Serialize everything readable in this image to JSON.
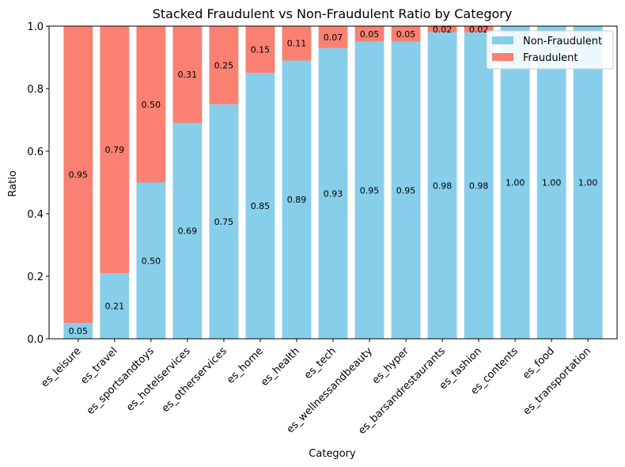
{
  "chart_data": {
    "type": "bar",
    "stacked": true,
    "title": "Stacked Fraudulent vs Non-Fraudulent Ratio by Category",
    "xlabel": "Category",
    "ylabel": "Ratio",
    "ylim": [
      0,
      1
    ],
    "yticks": [
      "0.0",
      "0.2",
      "0.4",
      "0.6",
      "0.8",
      "1.0"
    ],
    "grid": false,
    "legend_position": "top-right",
    "categories": [
      "es_leisure",
      "es_travel",
      "es_sportsandtoys",
      "es_hotelservices",
      "es_otherservices",
      "es_home",
      "es_health",
      "es_tech",
      "es_wellnessandbeauty",
      "es_hyper",
      "es_barsandrestaurants",
      "es_fashion",
      "es_contents",
      "es_food",
      "es_transportation"
    ],
    "series": [
      {
        "name": "Non-Fraudulent",
        "color": "#87ceeb",
        "values": [
          0.05,
          0.21,
          0.5,
          0.69,
          0.75,
          0.85,
          0.89,
          0.93,
          0.95,
          0.95,
          0.98,
          0.98,
          1.0,
          1.0,
          1.0
        ],
        "labels": [
          "0.05",
          "0.21",
          "0.50",
          "0.69",
          "0.75",
          "0.85",
          "0.89",
          "0.93",
          "0.95",
          "0.95",
          "0.98",
          "0.98",
          "1.00",
          "1.00",
          "1.00"
        ]
      },
      {
        "name": "Fraudulent",
        "color": "#fa8072",
        "values": [
          0.95,
          0.79,
          0.5,
          0.31,
          0.25,
          0.15,
          0.11,
          0.07,
          0.05,
          0.05,
          0.02,
          0.02,
          0.0,
          0.0,
          0.0
        ],
        "labels": [
          "0.95",
          "0.79",
          "0.50",
          "0.31",
          "0.25",
          "0.15",
          "0.11",
          "0.07",
          "0.05",
          "0.05",
          "0.02",
          "0.02",
          "",
          "",
          ""
        ]
      }
    ]
  }
}
